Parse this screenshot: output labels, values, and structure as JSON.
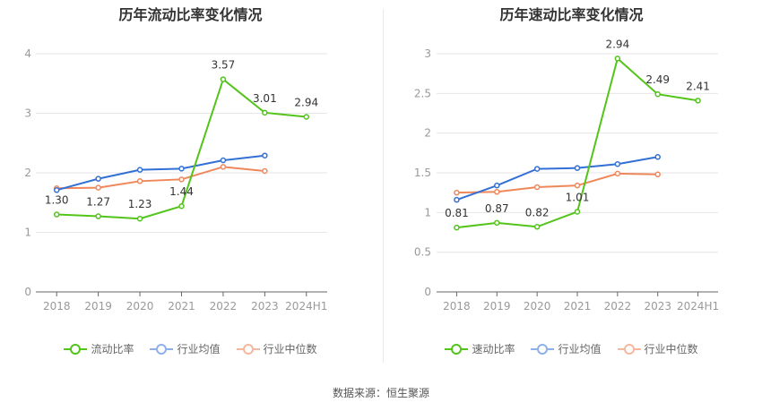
{
  "source_text": "数据来源：恒生聚源",
  "chart_data": [
    {
      "id": "left",
      "type": "line",
      "title": "历年流动比率变化情况",
      "categories": [
        "2018",
        "2019",
        "2020",
        "2021",
        "2022",
        "2023",
        "2024H1"
      ],
      "ylim": [
        0,
        4
      ],
      "yticks": [
        0,
        1,
        2,
        3,
        4
      ],
      "ytick_labels": [
        "0",
        "1",
        "2",
        "3",
        "4"
      ],
      "series": [
        {
          "name": "流动比率",
          "color": "#52c41a",
          "values": [
            1.3,
            1.27,
            1.23,
            1.44,
            3.57,
            3.01,
            2.94
          ],
          "labels": [
            "1.30",
            "1.27",
            "1.23",
            "1.44",
            "3.57",
            "3.01",
            "2.94"
          ]
        },
        {
          "name": "行业均值",
          "color": "#3370d6",
          "values": [
            1.71,
            1.9,
            2.05,
            2.07,
            2.21,
            2.29,
            null
          ]
        },
        {
          "name": "行业中位数",
          "color": "#f0875a",
          "values": [
            1.74,
            1.75,
            1.86,
            1.89,
            2.1,
            2.03,
            null
          ]
        }
      ],
      "legend": [
        {
          "label": "流动比率",
          "color": "#52c41a"
        },
        {
          "label": "行业均值",
          "color": "#8fb0e8"
        },
        {
          "label": "行业中位数",
          "color": "#f5b89e"
        }
      ]
    },
    {
      "id": "right",
      "type": "line",
      "title": "历年速动比率变化情况",
      "categories": [
        "2018",
        "2019",
        "2020",
        "2021",
        "2022",
        "2023",
        "2024H1"
      ],
      "ylim": [
        0,
        3
      ],
      "yticks": [
        0,
        0.5,
        1,
        1.5,
        2,
        2.5,
        3
      ],
      "ytick_labels": [
        "0",
        "0.5",
        "1",
        "1.5",
        "2",
        "2.5",
        "3"
      ],
      "series": [
        {
          "name": "速动比率",
          "color": "#52c41a",
          "values": [
            0.81,
            0.87,
            0.82,
            1.01,
            2.94,
            2.49,
            2.41
          ],
          "labels": [
            "0.81",
            "0.87",
            "0.82",
            "1.01",
            "2.94",
            "2.49",
            "2.41"
          ]
        },
        {
          "name": "行业均值",
          "color": "#3370d6",
          "values": [
            1.16,
            1.34,
            1.55,
            1.56,
            1.61,
            1.7,
            null
          ]
        },
        {
          "name": "行业中位数",
          "color": "#f0875a",
          "values": [
            1.25,
            1.26,
            1.32,
            1.34,
            1.49,
            1.48,
            null
          ]
        }
      ],
      "legend": [
        {
          "label": "速动比率",
          "color": "#52c41a"
        },
        {
          "label": "行业均值",
          "color": "#8fb0e8"
        },
        {
          "label": "行业中位数",
          "color": "#f5b89e"
        }
      ]
    }
  ]
}
